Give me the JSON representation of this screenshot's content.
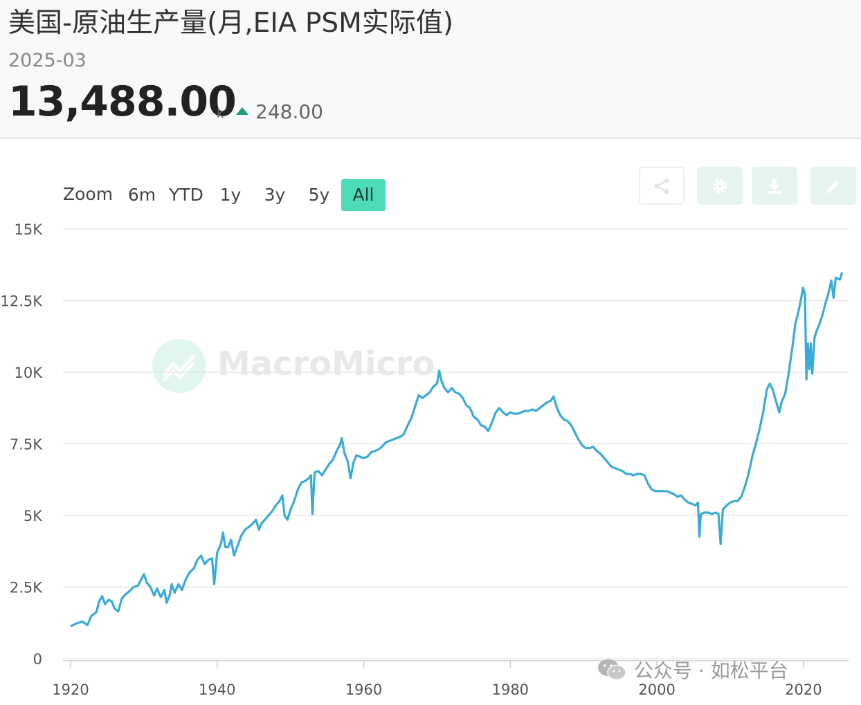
{
  "header": {
    "title": "美国-原油生产量(月,EIA PSM实际值)",
    "date": "2025-03",
    "value": "13,488.00",
    "unit": "k",
    "change": "248.00"
  },
  "range_selector": {
    "label": "Zoom",
    "buttons": [
      "6m",
      "YTD",
      "1y",
      "3y",
      "5y",
      "All"
    ],
    "active": "All"
  },
  "toolbar": {
    "icons": [
      "share-icon",
      "gear-icon",
      "download-icon",
      "pencil-icon"
    ]
  },
  "watermark": {
    "text": "MacroMicro"
  },
  "footer_watermark": {
    "text": "公众号 · 如松平台"
  },
  "colors": {
    "line": "#3aaad6",
    "accent": "#4ddbb8",
    "up": "#1aa07a",
    "grid": "#e6e6e6"
  },
  "chart_data": {
    "type": "line",
    "x_ticks": [
      "1920",
      "1940",
      "1960",
      "1980",
      "2000",
      "2020"
    ],
    "y_ticks": [
      "0",
      "2.5K",
      "5K",
      "7.5K",
      "10K",
      "12.5K",
      "15K"
    ],
    "xlim": [
      1920,
      2025.3
    ],
    "ylim": [
      0,
      15000
    ],
    "grid": true,
    "series": [
      {
        "points": [
          [
            1920.0,
            1130
          ],
          [
            1920.8,
            1230
          ],
          [
            1921.6,
            1300
          ],
          [
            1922.3,
            1170
          ],
          [
            1922.8,
            1480
          ],
          [
            1923.5,
            1620
          ],
          [
            1923.9,
            2000
          ],
          [
            1924.3,
            2180
          ],
          [
            1924.7,
            1900
          ],
          [
            1925.2,
            2050
          ],
          [
            1925.6,
            2000
          ],
          [
            1926.0,
            1750
          ],
          [
            1926.5,
            1650
          ],
          [
            1927.0,
            2100
          ],
          [
            1927.5,
            2250
          ],
          [
            1928.0,
            2350
          ],
          [
            1928.6,
            2500
          ],
          [
            1929.2,
            2550
          ],
          [
            1929.7,
            2800
          ],
          [
            1930.0,
            2950
          ],
          [
            1930.4,
            2650
          ],
          [
            1930.9,
            2500
          ],
          [
            1931.4,
            2200
          ],
          [
            1931.8,
            2450
          ],
          [
            1932.3,
            2150
          ],
          [
            1932.8,
            2400
          ],
          [
            1933.1,
            1950
          ],
          [
            1933.5,
            2200
          ],
          [
            1933.8,
            2600
          ],
          [
            1934.2,
            2300
          ],
          [
            1934.7,
            2600
          ],
          [
            1935.2,
            2400
          ],
          [
            1935.7,
            2750
          ],
          [
            1936.2,
            3000
          ],
          [
            1936.8,
            3150
          ],
          [
            1937.3,
            3450
          ],
          [
            1937.8,
            3600
          ],
          [
            1938.3,
            3300
          ],
          [
            1938.8,
            3450
          ],
          [
            1939.3,
            3500
          ],
          [
            1939.6,
            2600
          ],
          [
            1940.0,
            3700
          ],
          [
            1940.5,
            4000
          ],
          [
            1940.8,
            4400
          ],
          [
            1941.1,
            3900
          ],
          [
            1941.5,
            3900
          ],
          [
            1941.9,
            4150
          ],
          [
            1942.3,
            3600
          ],
          [
            1942.8,
            3950
          ],
          [
            1943.3,
            4300
          ],
          [
            1943.8,
            4500
          ],
          [
            1944.3,
            4600
          ],
          [
            1944.8,
            4700
          ],
          [
            1945.3,
            4850
          ],
          [
            1945.7,
            4500
          ],
          [
            1946.0,
            4700
          ],
          [
            1946.5,
            4850
          ],
          [
            1947.0,
            5000
          ],
          [
            1947.5,
            5150
          ],
          [
            1948.0,
            5350
          ],
          [
            1948.5,
            5500
          ],
          [
            1948.9,
            5700
          ],
          [
            1949.2,
            5000
          ],
          [
            1949.6,
            4850
          ],
          [
            1950.0,
            5200
          ],
          [
            1950.5,
            5500
          ],
          [
            1951.0,
            5900
          ],
          [
            1951.5,
            6150
          ],
          [
            1952.0,
            6200
          ],
          [
            1952.5,
            6300
          ],
          [
            1952.8,
            6400
          ],
          [
            1953.0,
            5050
          ],
          [
            1953.3,
            6500
          ],
          [
            1953.8,
            6550
          ],
          [
            1954.3,
            6400
          ],
          [
            1954.8,
            6600
          ],
          [
            1955.3,
            6800
          ],
          [
            1955.8,
            6950
          ],
          [
            1956.3,
            7250
          ],
          [
            1956.8,
            7500
          ],
          [
            1957.0,
            7700
          ],
          [
            1957.4,
            7150
          ],
          [
            1957.8,
            6900
          ],
          [
            1958.2,
            6300
          ],
          [
            1958.6,
            6850
          ],
          [
            1959.0,
            7100
          ],
          [
            1959.5,
            7050
          ],
          [
            1960.0,
            7000
          ],
          [
            1960.5,
            7050
          ],
          [
            1961.0,
            7200
          ],
          [
            1961.5,
            7250
          ],
          [
            1962.0,
            7300
          ],
          [
            1962.5,
            7400
          ],
          [
            1963.0,
            7550
          ],
          [
            1963.5,
            7600
          ],
          [
            1964.0,
            7650
          ],
          [
            1964.5,
            7700
          ],
          [
            1965.0,
            7750
          ],
          [
            1965.5,
            7850
          ],
          [
            1966.0,
            8150
          ],
          [
            1966.5,
            8400
          ],
          [
            1967.0,
            8800
          ],
          [
            1967.5,
            9200
          ],
          [
            1968.0,
            9100
          ],
          [
            1968.5,
            9200
          ],
          [
            1969.0,
            9300
          ],
          [
            1969.5,
            9500
          ],
          [
            1970.0,
            9600
          ],
          [
            1970.3,
            10050
          ],
          [
            1970.6,
            9700
          ],
          [
            1971.0,
            9450
          ],
          [
            1971.5,
            9300
          ],
          [
            1972.0,
            9450
          ],
          [
            1972.5,
            9300
          ],
          [
            1973.0,
            9250
          ],
          [
            1973.5,
            9100
          ],
          [
            1974.0,
            8850
          ],
          [
            1974.5,
            8750
          ],
          [
            1975.0,
            8450
          ],
          [
            1975.5,
            8350
          ],
          [
            1976.0,
            8150
          ],
          [
            1976.5,
            8100
          ],
          [
            1977.0,
            7950
          ],
          [
            1977.5,
            8250
          ],
          [
            1978.0,
            8600
          ],
          [
            1978.5,
            8750
          ],
          [
            1979.0,
            8600
          ],
          [
            1979.5,
            8500
          ],
          [
            1980.0,
            8600
          ],
          [
            1980.5,
            8550
          ],
          [
            1981.0,
            8550
          ],
          [
            1981.5,
            8600
          ],
          [
            1982.0,
            8650
          ],
          [
            1982.5,
            8650
          ],
          [
            1983.0,
            8700
          ],
          [
            1983.5,
            8650
          ],
          [
            1984.0,
            8750
          ],
          [
            1984.5,
            8850
          ],
          [
            1985.0,
            8950
          ],
          [
            1985.5,
            9000
          ],
          [
            1985.9,
            9150
          ],
          [
            1986.3,
            8800
          ],
          [
            1986.8,
            8500
          ],
          [
            1987.3,
            8350
          ],
          [
            1987.8,
            8300
          ],
          [
            1988.3,
            8150
          ],
          [
            1988.8,
            7900
          ],
          [
            1989.3,
            7650
          ],
          [
            1989.8,
            7450
          ],
          [
            1990.3,
            7350
          ],
          [
            1990.8,
            7350
          ],
          [
            1991.3,
            7400
          ],
          [
            1991.8,
            7250
          ],
          [
            1992.3,
            7150
          ],
          [
            1992.8,
            7000
          ],
          [
            1993.3,
            6850
          ],
          [
            1993.8,
            6700
          ],
          [
            1994.3,
            6650
          ],
          [
            1994.8,
            6600
          ],
          [
            1995.3,
            6550
          ],
          [
            1995.8,
            6450
          ],
          [
            1996.3,
            6450
          ],
          [
            1996.8,
            6400
          ],
          [
            1997.3,
            6450
          ],
          [
            1997.8,
            6450
          ],
          [
            1998.3,
            6400
          ],
          [
            1998.8,
            6100
          ],
          [
            1999.3,
            5900
          ],
          [
            1999.8,
            5850
          ],
          [
            2000.3,
            5850
          ],
          [
            2000.8,
            5850
          ],
          [
            2001.3,
            5850
          ],
          [
            2001.8,
            5800
          ],
          [
            2002.3,
            5750
          ],
          [
            2002.8,
            5650
          ],
          [
            2003.3,
            5700
          ],
          [
            2003.8,
            5550
          ],
          [
            2004.3,
            5450
          ],
          [
            2004.8,
            5400
          ],
          [
            2005.3,
            5350
          ],
          [
            2005.6,
            5450
          ],
          [
            2005.8,
            4250
          ],
          [
            2006.0,
            5050
          ],
          [
            2006.5,
            5100
          ],
          [
            2007.0,
            5100
          ],
          [
            2007.5,
            5050
          ],
          [
            2008.0,
            5100
          ],
          [
            2008.4,
            5050
          ],
          [
            2008.7,
            4000
          ],
          [
            2009.0,
            5200
          ],
          [
            2009.5,
            5350
          ],
          [
            2010.0,
            5450
          ],
          [
            2010.5,
            5500
          ],
          [
            2011.0,
            5500
          ],
          [
            2011.5,
            5650
          ],
          [
            2012.0,
            6000
          ],
          [
            2012.5,
            6450
          ],
          [
            2013.0,
            7050
          ],
          [
            2013.5,
            7500
          ],
          [
            2014.0,
            8000
          ],
          [
            2014.5,
            8600
          ],
          [
            2015.0,
            9400
          ],
          [
            2015.4,
            9600
          ],
          [
            2015.8,
            9400
          ],
          [
            2016.3,
            8950
          ],
          [
            2016.7,
            8600
          ],
          [
            2017.0,
            8950
          ],
          [
            2017.5,
            9250
          ],
          [
            2018.0,
            10000
          ],
          [
            2018.5,
            10900
          ],
          [
            2018.9,
            11700
          ],
          [
            2019.3,
            12100
          ],
          [
            2019.7,
            12600
          ],
          [
            2019.95,
            12950
          ],
          [
            2020.2,
            12700
          ],
          [
            2020.4,
            9750
          ],
          [
            2020.6,
            11000
          ],
          [
            2020.8,
            10100
          ],
          [
            2021.0,
            11000
          ],
          [
            2021.2,
            9950
          ],
          [
            2021.5,
            11200
          ],
          [
            2021.8,
            11450
          ],
          [
            2022.2,
            11700
          ],
          [
            2022.6,
            12000
          ],
          [
            2023.0,
            12400
          ],
          [
            2023.4,
            12750
          ],
          [
            2023.8,
            13200
          ],
          [
            2024.1,
            12600
          ],
          [
            2024.4,
            13300
          ],
          [
            2024.8,
            13250
          ],
          [
            2025.0,
            13240
          ],
          [
            2025.25,
            13488
          ]
        ]
      }
    ]
  }
}
